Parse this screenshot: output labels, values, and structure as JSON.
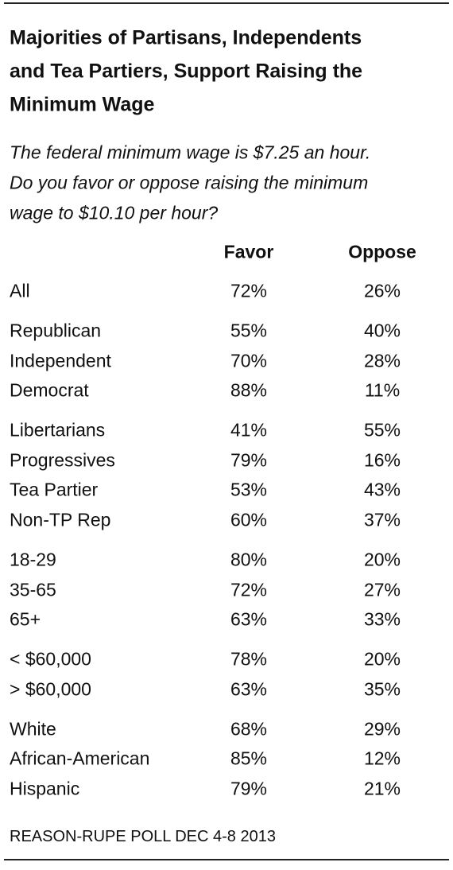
{
  "header": {
    "title": [
      "Majorities of Partisans, Independents",
      "and Tea Partiers, Support Raising the",
      "Minimum Wage"
    ],
    "subtitle": [
      "The federal minimum wage is $7.25 an hour.",
      "Do you favor or oppose raising the minimum",
      "wage to $10.10 per hour?"
    ]
  },
  "table": {
    "columns": [
      "Favor",
      "Oppose"
    ],
    "groups": [
      [
        [
          "All",
          "72%",
          "26%"
        ]
      ],
      [
        [
          "Republican",
          "55%",
          "40%"
        ],
        [
          "Independent",
          "70%",
          "28%"
        ],
        [
          "Democrat",
          "88%",
          "11%"
        ]
      ],
      [
        [
          "Libertarians",
          "41%",
          "55%"
        ],
        [
          "Progressives",
          "79%",
          "16%"
        ],
        [
          "Tea Partier",
          "53%",
          "43%"
        ],
        [
          "Non-TP Rep",
          "60%",
          "37%"
        ]
      ],
      [
        [
          "18-29",
          "80%",
          "20%"
        ],
        [
          "35-65",
          "72%",
          "27%"
        ],
        [
          "65+",
          "63%",
          "33%"
        ]
      ],
      [
        [
          "< $60,000",
          "78%",
          "20%"
        ],
        [
          "> $60,000",
          "63%",
          "35%"
        ]
      ],
      [
        [
          "White",
          "68%",
          "29%"
        ],
        [
          "African-American",
          "85%",
          "12%"
        ],
        [
          "Hispanic",
          "79%",
          "21%"
        ]
      ]
    ]
  },
  "footer": "REASON-RUPE POLL DEC 4-8 2013"
}
